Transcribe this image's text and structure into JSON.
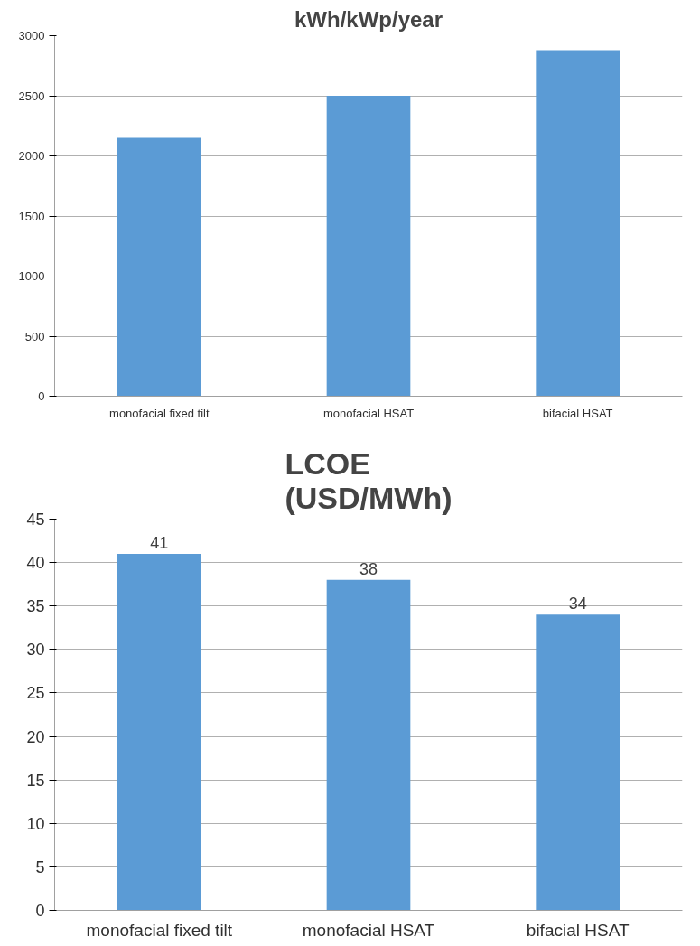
{
  "chart_data": [
    {
      "type": "bar",
      "title": "kWh/kWp/year",
      "categories": [
        "monofacial fixed tilt",
        "monofacial HSAT",
        "bifacial HSAT"
      ],
      "values": [
        2150,
        2500,
        2880
      ],
      "color": "#5b9bd5",
      "ylim": [
        0,
        3000
      ],
      "yticks": [
        0,
        500,
        1000,
        1500,
        2000,
        2500,
        3000
      ],
      "grid": "y"
    },
    {
      "type": "bar",
      "title": "LCOE\n(USD/MWh)",
      "categories": [
        "monofacial fixed tilt",
        "monofacial HSAT",
        "bifacial HSAT"
      ],
      "values": [
        41,
        38,
        34
      ],
      "color": "#5b9bd5",
      "ylim": [
        0,
        45
      ],
      "yticks": [
        0,
        5,
        10,
        15,
        20,
        25,
        30,
        35,
        40,
        45
      ],
      "grid": "y",
      "data_labels": true
    }
  ]
}
